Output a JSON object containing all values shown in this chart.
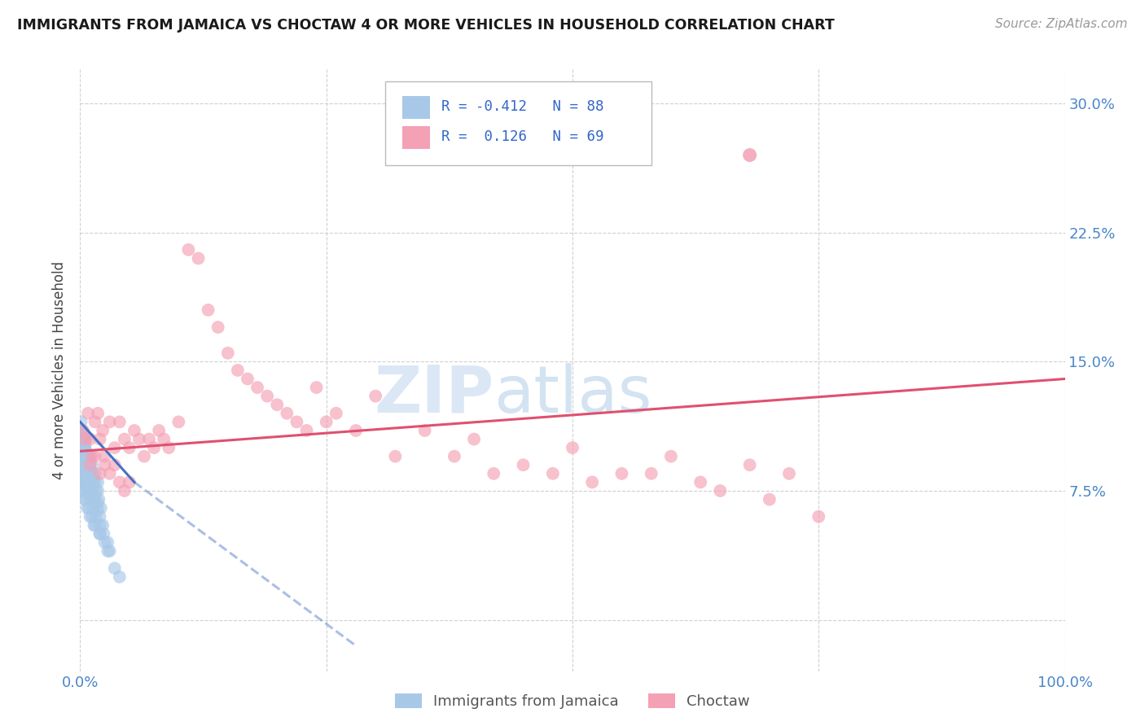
{
  "title": "IMMIGRANTS FROM JAMAICA VS CHOCTAW 4 OR MORE VEHICLES IN HOUSEHOLD CORRELATION CHART",
  "source": "Source: ZipAtlas.com",
  "ylabel": "4 or more Vehicles in Household",
  "xlim": [
    0.0,
    100.0
  ],
  "ylim": [
    -3.0,
    32.0
  ],
  "background_color": "#ffffff",
  "grid_color": "#d0d0d0",
  "r_jamaica": -0.412,
  "n_jamaica": 88,
  "r_choctaw": 0.126,
  "n_choctaw": 69,
  "legend_labels": [
    "Immigrants from Jamaica",
    "Choctaw"
  ],
  "jamaica_color": "#a8c8e8",
  "choctaw_color": "#f4a0b5",
  "jamaica_line_color": "#4472c4",
  "choctaw_line_color": "#e05070",
  "jamaica_x": [
    0.1,
    0.2,
    0.3,
    0.4,
    0.5,
    0.6,
    0.7,
    0.8,
    0.9,
    1.0,
    0.1,
    0.2,
    0.3,
    0.5,
    0.6,
    0.8,
    1.0,
    1.2,
    1.5,
    1.8,
    0.1,
    0.2,
    0.3,
    0.4,
    0.6,
    0.8,
    1.0,
    1.2,
    1.5,
    1.8,
    0.1,
    0.2,
    0.3,
    0.5,
    0.7,
    0.9,
    1.1,
    1.3,
    1.6,
    1.9,
    0.1,
    0.2,
    0.4,
    0.6,
    0.8,
    1.0,
    1.2,
    1.5,
    1.8,
    2.1,
    0.1,
    0.3,
    0.5,
    0.7,
    0.9,
    1.2,
    1.5,
    1.8,
    2.0,
    2.3,
    0.1,
    0.3,
    0.5,
    0.8,
    1.0,
    1.3,
    1.6,
    2.0,
    2.4,
    2.8,
    0.2,
    0.4,
    0.6,
    0.9,
    1.2,
    1.5,
    2.0,
    2.5,
    3.0,
    3.5,
    0.2,
    0.4,
    0.7,
    1.0,
    1.4,
    2.0,
    2.8,
    4.0
  ],
  "jamaica_y": [
    11.5,
    11.0,
    10.5,
    10.5,
    10.0,
    10.5,
    9.5,
    9.5,
    9.0,
    9.5,
    11.0,
    10.8,
    10.5,
    10.2,
    9.8,
    9.5,
    9.2,
    9.0,
    8.5,
    8.0,
    10.5,
    10.2,
    10.0,
    9.8,
    9.5,
    9.0,
    8.8,
    8.5,
    8.0,
    7.5,
    10.0,
    9.8,
    9.5,
    9.2,
    8.8,
    8.5,
    8.2,
    8.0,
    7.5,
    7.0,
    9.5,
    9.2,
    9.0,
    8.7,
    8.3,
    8.0,
    7.6,
    7.2,
    6.8,
    6.5,
    9.0,
    8.8,
    8.5,
    8.0,
    7.6,
    7.2,
    6.8,
    6.4,
    6.0,
    5.5,
    8.5,
    8.2,
    7.9,
    7.5,
    7.0,
    6.5,
    6.0,
    5.5,
    5.0,
    4.5,
    8.0,
    7.5,
    7.0,
    6.5,
    6.0,
    5.5,
    5.0,
    4.5,
    4.0,
    3.0,
    7.5,
    7.0,
    6.5,
    6.0,
    5.5,
    5.0,
    4.0,
    2.5
  ],
  "choctaw_x": [
    0.3,
    0.5,
    0.8,
    1.0,
    1.2,
    1.5,
    1.8,
    2.0,
    2.3,
    2.5,
    3.0,
    3.5,
    4.0,
    4.5,
    5.0,
    5.5,
    6.0,
    6.5,
    7.0,
    7.5,
    8.0,
    8.5,
    9.0,
    10.0,
    11.0,
    12.0,
    13.0,
    14.0,
    15.0,
    16.0,
    17.0,
    18.0,
    19.0,
    20.0,
    21.0,
    22.0,
    23.0,
    24.0,
    25.0,
    26.0,
    28.0,
    30.0,
    32.0,
    35.0,
    38.0,
    40.0,
    42.0,
    45.0,
    48.0,
    50.0,
    52.0,
    55.0,
    58.0,
    60.0,
    63.0,
    65.0,
    68.0,
    70.0,
    72.0,
    1.0,
    1.5,
    2.0,
    2.5,
    3.0,
    3.5,
    4.0,
    4.5,
    5.0,
    75.0
  ],
  "choctaw_y": [
    11.0,
    10.5,
    12.0,
    10.5,
    9.5,
    11.5,
    12.0,
    10.5,
    11.0,
    9.5,
    11.5,
    10.0,
    11.5,
    10.5,
    10.0,
    11.0,
    10.5,
    9.5,
    10.5,
    10.0,
    11.0,
    10.5,
    10.0,
    11.5,
    21.5,
    21.0,
    18.0,
    17.0,
    15.5,
    14.5,
    14.0,
    13.5,
    13.0,
    12.5,
    12.0,
    11.5,
    11.0,
    13.5,
    11.5,
    12.0,
    11.0,
    13.0,
    9.5,
    11.0,
    9.5,
    10.5,
    8.5,
    9.0,
    8.5,
    10.0,
    8.0,
    8.5,
    8.5,
    9.5,
    8.0,
    7.5,
    9.0,
    7.0,
    8.5,
    9.0,
    9.5,
    8.5,
    9.0,
    8.5,
    9.0,
    8.0,
    7.5,
    8.0,
    6.0
  ],
  "choctaw_outlier_x": [
    68.0
  ],
  "choctaw_outlier_y": [
    27.0
  ],
  "jamaica_trend_x": [
    0.0,
    5.0,
    30.0
  ],
  "jamaica_trend_y": [
    11.5,
    8.5,
    2.0
  ],
  "choctaw_trend_x": [
    0.0,
    100.0
  ],
  "choctaw_trend_y": [
    9.8,
    14.0
  ]
}
